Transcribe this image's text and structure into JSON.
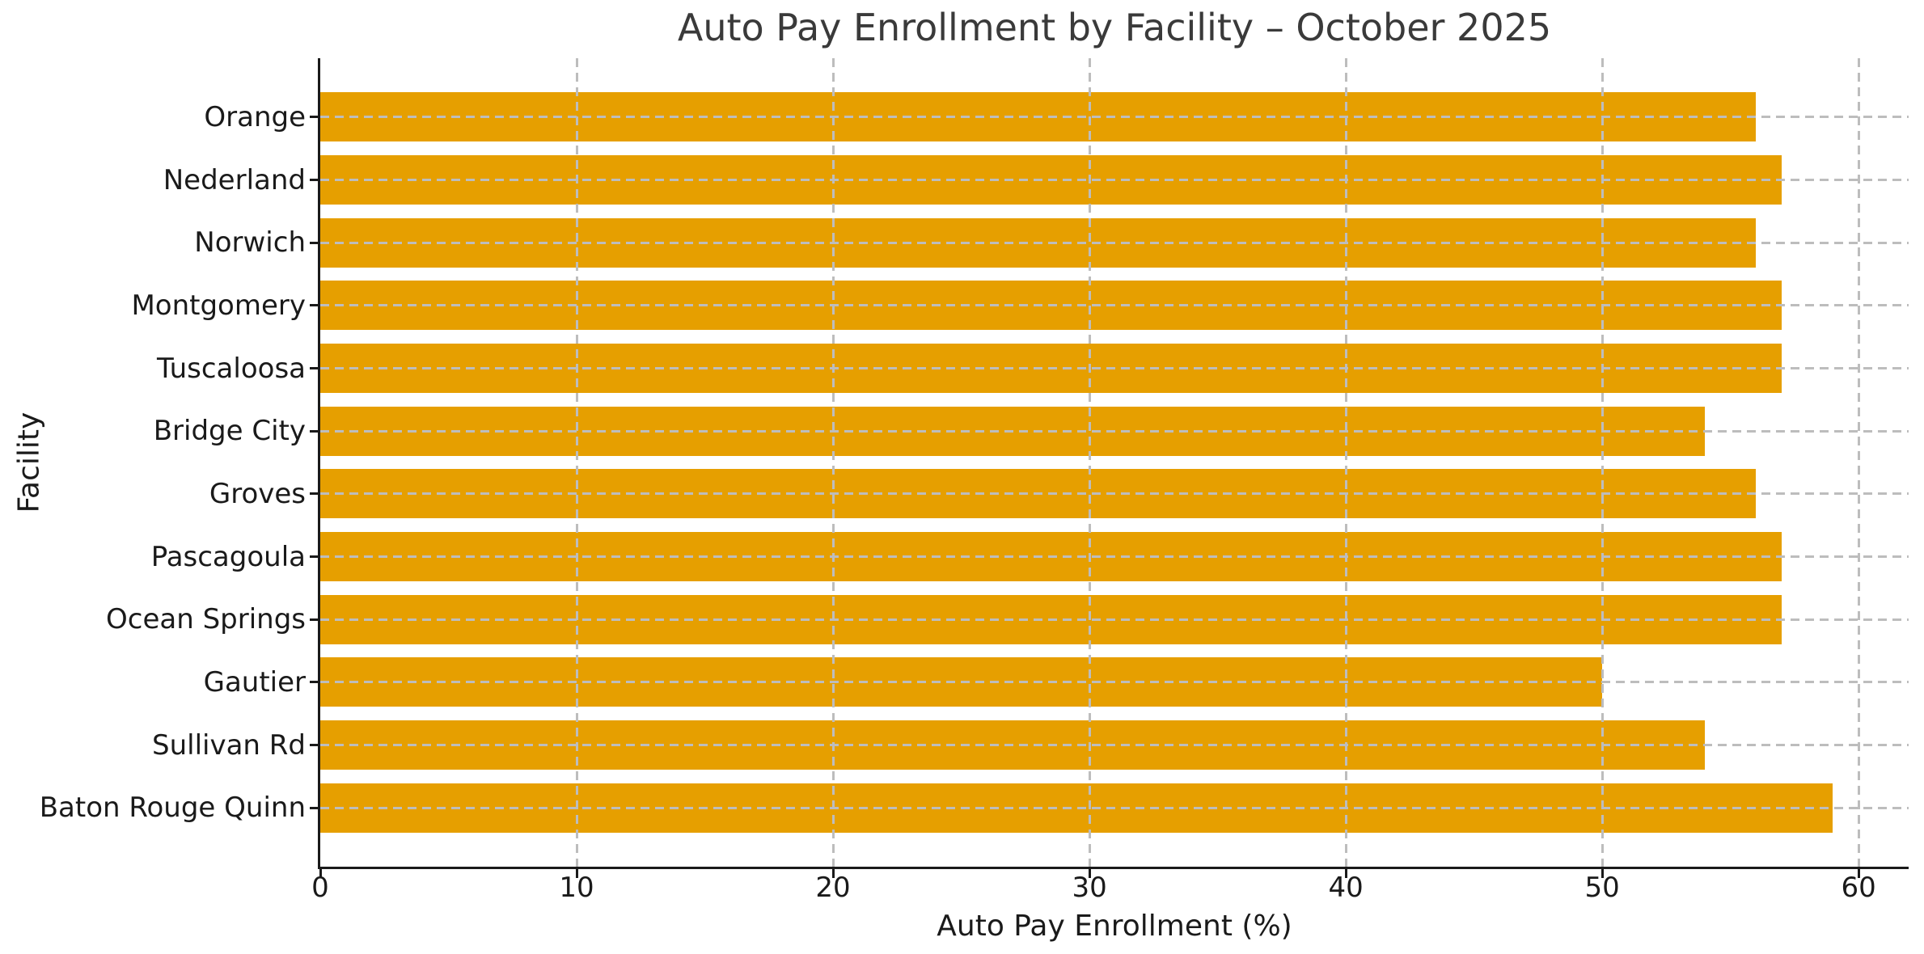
{
  "chart_data": {
    "type": "bar",
    "orientation": "horizontal",
    "title": "Auto Pay Enrollment by Facility – October 2025",
    "xlabel": "Auto Pay Enrollment (%)",
    "ylabel": "Facility",
    "categories": [
      "Orange",
      "Nederland",
      "Norwich",
      "Montgomery",
      "Tuscaloosa",
      "Bridge City",
      "Groves",
      "Pascagoula",
      "Ocean Springs",
      "Gautier",
      "Sullivan Rd",
      "Baton Rouge Quinn"
    ],
    "values": [
      56,
      57,
      56,
      57,
      57,
      54,
      56,
      57,
      57,
      50,
      54,
      59
    ],
    "xticks": [
      0,
      10,
      20,
      30,
      40,
      50,
      60
    ],
    "xlim": [
      0,
      61.95
    ],
    "grid": true,
    "grid_style": "dashed",
    "legend": "none",
    "bar_color": "#E69F00",
    "grid_color": "#bdbdbd",
    "axis_color": "#1a1a1a",
    "text_color": "#1a1a1a",
    "title_color": "#3a3a3a",
    "background_color": "#ffffff"
  }
}
